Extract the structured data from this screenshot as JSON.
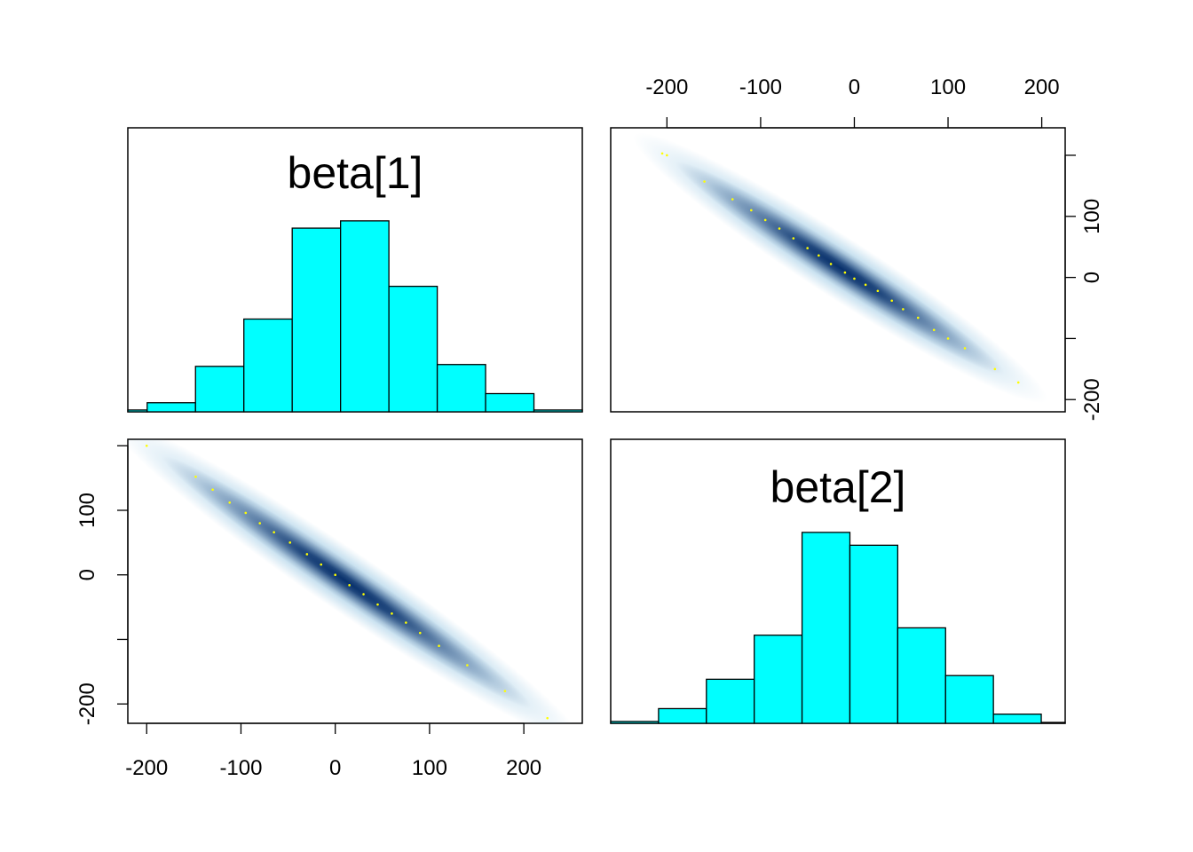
{
  "chart_data": [
    {
      "type": "bar",
      "panel": "top-left",
      "title": "beta[1]",
      "bin_edges": [
        -220,
        -200,
        -150,
        -100,
        -50,
        0,
        50,
        100,
        150,
        200,
        250
      ],
      "values": [
        1,
        5,
        25,
        51,
        101,
        105,
        69,
        26,
        10,
        1
      ],
      "bar_color": "#00FFFF"
    },
    {
      "type": "scatter",
      "panel": "top-right",
      "x_label_values": [
        -200,
        -100,
        0,
        100,
        200
      ],
      "y_label_values": [
        -200,
        0,
        100
      ],
      "x_ticks": [
        -200,
        -100,
        0,
        100,
        200
      ],
      "y_ticks": [
        -200,
        -100,
        0,
        100,
        200
      ],
      "xlim": [
        -260,
        225
      ],
      "ylim": [
        -220,
        245
      ],
      "density_color": "#08306B",
      "point_color": "#FFFF00",
      "points": [
        [
          -205,
          203
        ],
        [
          -200,
          200
        ],
        [
          -160,
          157
        ],
        [
          -130,
          128
        ],
        [
          -110,
          110
        ],
        [
          -95,
          94
        ],
        [
          -80,
          80
        ],
        [
          -65,
          64
        ],
        [
          -50,
          48
        ],
        [
          -38,
          36
        ],
        [
          -25,
          22
        ],
        [
          -10,
          8
        ],
        [
          0,
          -2
        ],
        [
          12,
          -12
        ],
        [
          25,
          -22
        ],
        [
          40,
          -38
        ],
        [
          52,
          -52
        ],
        [
          68,
          -66
        ],
        [
          85,
          -86
        ],
        [
          100,
          -100
        ],
        [
          118,
          -116
        ],
        [
          150,
          -150
        ],
        [
          175,
          -172
        ]
      ]
    },
    {
      "type": "scatter",
      "panel": "bottom-left",
      "x_label_values": [
        -200,
        -100,
        0,
        100,
        200
      ],
      "y_label_values": [
        -200,
        0,
        100
      ],
      "x_ticks": [
        -200,
        -100,
        0,
        100,
        200
      ],
      "y_ticks": [
        -200,
        -100,
        0,
        100,
        200
      ],
      "xlim": [
        -220,
        262
      ],
      "ylim": [
        -230,
        210
      ],
      "density_color": "#08306B",
      "point_color": "#FFFF00",
      "points": [
        [
          -200,
          200
        ],
        [
          -148,
          152
        ],
        [
          -130,
          132
        ],
        [
          -112,
          112
        ],
        [
          -95,
          96
        ],
        [
          -80,
          80
        ],
        [
          -65,
          66
        ],
        [
          -48,
          50
        ],
        [
          -30,
          32
        ],
        [
          -15,
          16
        ],
        [
          0,
          0
        ],
        [
          15,
          -16
        ],
        [
          30,
          -30
        ],
        [
          45,
          -46
        ],
        [
          60,
          -60
        ],
        [
          75,
          -74
        ],
        [
          90,
          -90
        ],
        [
          110,
          -110
        ],
        [
          140,
          -140
        ],
        [
          180,
          -180
        ],
        [
          225,
          -222
        ]
      ]
    },
    {
      "type": "bar",
      "panel": "bottom-right",
      "title": "beta[2]",
      "bin_edges": [
        -250,
        -200,
        -150,
        -100,
        -50,
        0,
        50,
        100,
        150,
        200,
        225
      ],
      "values": [
        1,
        8,
        24,
        48,
        104,
        97,
        52,
        26,
        5,
        0.5
      ],
      "bar_color": "#00FFFF"
    }
  ]
}
